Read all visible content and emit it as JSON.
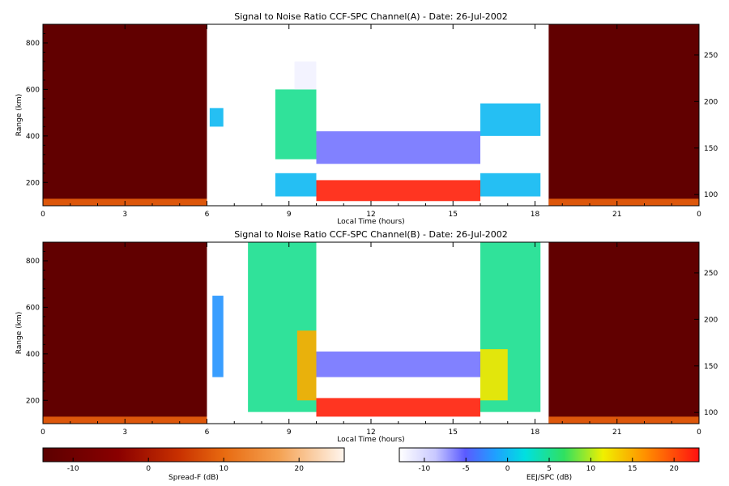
{
  "chart_data": [
    {
      "type": "heatmap",
      "title": "Signal to Noise Ratio CCF-SPC Channel(A) - Date: 26-Jul-2002",
      "xlabel": "Local Time (hours)",
      "ylabel": "Range (km)",
      "xlim": [
        0,
        24
      ],
      "ylim": [
        100,
        880
      ],
      "xticks": [
        "0",
        "3",
        "6",
        "9",
        "12",
        "15",
        "18",
        "21",
        "0"
      ],
      "yticks": [
        200,
        400,
        600,
        800
      ],
      "y2ticks": [
        100,
        150,
        200,
        250
      ],
      "y2lim": [
        88,
        283
      ],
      "regions": [
        {
          "name": "Spread-F",
          "x": [
            0,
            6
          ],
          "y": [
            100,
            880
          ],
          "value_db": -13
        },
        {
          "name": "Spread-F",
          "x": [
            18.5,
            24
          ],
          "y": [
            100,
            880
          ],
          "value_db": -13
        },
        {
          "name": "Spread-F",
          "x": [
            0,
            6
          ],
          "y": [
            100,
            130
          ],
          "value_db": 8
        },
        {
          "name": "Spread-F",
          "x": [
            18.5,
            24
          ],
          "y": [
            100,
            130
          ],
          "value_db": 8
        },
        {
          "name": "EEJ/SPC",
          "x": [
            10,
            16
          ],
          "y": [
            120,
            210
          ],
          "value_db": 22
        },
        {
          "name": "EEJ/SPC",
          "x": [
            10,
            16
          ],
          "y": [
            280,
            420
          ],
          "value_db": -6
        },
        {
          "name": "EEJ/SPC",
          "x": [
            6.1,
            6.6
          ],
          "y": [
            440,
            520
          ],
          "value_db": 0
        },
        {
          "name": "EEJ/SPC",
          "x": [
            8.5,
            10
          ],
          "y": [
            140,
            240
          ],
          "value_db": 0
        },
        {
          "name": "EEJ/SPC",
          "x": [
            8.5,
            10
          ],
          "y": [
            300,
            600
          ],
          "value_db": 5
        },
        {
          "name": "EEJ/SPC",
          "x": [
            9.2,
            10
          ],
          "y": [
            600,
            720
          ],
          "value_db": -12
        },
        {
          "name": "EEJ/SPC",
          "x": [
            16,
            18.2
          ],
          "y": [
            140,
            240
          ],
          "value_db": 0
        },
        {
          "name": "EEJ/SPC",
          "x": [
            16,
            18.2
          ],
          "y": [
            400,
            540
          ],
          "value_db": 0
        }
      ]
    },
    {
      "type": "heatmap",
      "title": "Signal to Noise Ratio CCF-SPC Channel(B) - Date: 26-Jul-2002",
      "xlabel": "Local Time (hours)",
      "ylabel": "Range (km)",
      "xlim": [
        0,
        24
      ],
      "ylim": [
        100,
        880
      ],
      "xticks": [
        "0",
        "3",
        "6",
        "9",
        "12",
        "15",
        "18",
        "21",
        "0"
      ],
      "yticks": [
        200,
        400,
        600,
        800
      ],
      "y2ticks": [
        100,
        150,
        200,
        250
      ],
      "y2lim": [
        88,
        283
      ],
      "regions": [
        {
          "name": "Spread-F",
          "x": [
            0,
            6
          ],
          "y": [
            100,
            880
          ],
          "value_db": -13
        },
        {
          "name": "Spread-F",
          "x": [
            18.5,
            24
          ],
          "y": [
            100,
            880
          ],
          "value_db": -13
        },
        {
          "name": "Spread-F",
          "x": [
            0,
            6
          ],
          "y": [
            100,
            130
          ],
          "value_db": 8
        },
        {
          "name": "Spread-F",
          "x": [
            18.5,
            24
          ],
          "y": [
            100,
            130
          ],
          "value_db": 8
        },
        {
          "name": "EEJ/SPC",
          "x": [
            10,
            16
          ],
          "y": [
            130,
            210
          ],
          "value_db": 22
        },
        {
          "name": "EEJ/SPC",
          "x": [
            10,
            16
          ],
          "y": [
            300,
            410
          ],
          "value_db": -6
        },
        {
          "name": "EEJ/SPC",
          "x": [
            6.2,
            6.6
          ],
          "y": [
            300,
            650
          ],
          "value_db": -2
        },
        {
          "name": "EEJ/SPC",
          "x": [
            7.5,
            10
          ],
          "y": [
            150,
            880
          ],
          "value_db": 5
        },
        {
          "name": "EEJ/SPC",
          "x": [
            9.3,
            10
          ],
          "y": [
            200,
            500
          ],
          "value_db": 15
        },
        {
          "name": "EEJ/SPC",
          "x": [
            16,
            18.2
          ],
          "y": [
            150,
            880
          ],
          "value_db": 5
        },
        {
          "name": "EEJ/SPC",
          "x": [
            16,
            17
          ],
          "y": [
            200,
            420
          ],
          "value_db": 12
        }
      ]
    }
  ],
  "colorbars": [
    {
      "label": "Spread-F (dB)",
      "ticks": [
        -10,
        0,
        10,
        20
      ],
      "range": [
        -14,
        26
      ]
    },
    {
      "label": "EEJ/SPC (dB)",
      "ticks": [
        -10,
        -5,
        0,
        5,
        10,
        15,
        20
      ],
      "range": [
        -13,
        23
      ]
    }
  ]
}
